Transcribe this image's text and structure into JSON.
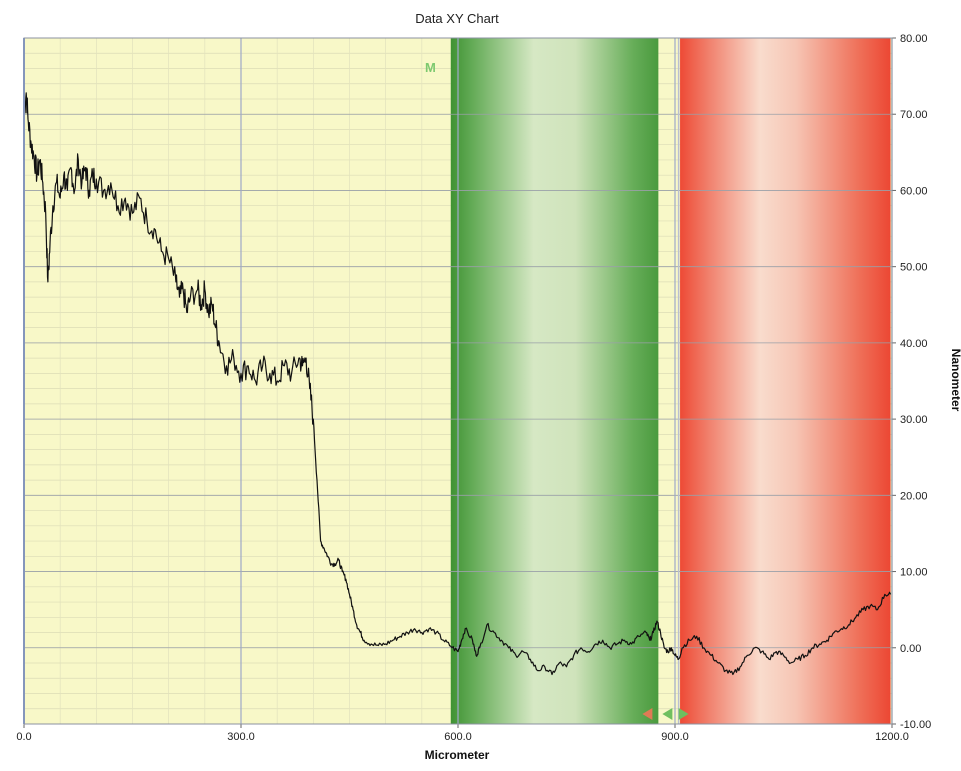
{
  "chart_data": {
    "type": "line",
    "title": "Data XY Chart",
    "xlabel": "Micrometer",
    "ylabel": "Nanometer",
    "xlim": [
      0,
      1200
    ],
    "ylim": [
      -10,
      80
    ],
    "x_ticks": [
      0,
      300,
      600,
      900,
      1200
    ],
    "x_tick_labels": [
      "0.0",
      "300.0",
      "600.0",
      "900.0",
      "1200.0"
    ],
    "y_ticks": [
      -10,
      0,
      10,
      20,
      30,
      40,
      50,
      60,
      70,
      80
    ],
    "y_tick_labels": [
      "-10.00",
      "0.00",
      "10.00",
      "20.00",
      "30.00",
      "40.00",
      "50.00",
      "60.00",
      "70.00",
      "80.00"
    ],
    "grid": true,
    "y_axis_side": "right",
    "colors": {
      "plot_background": "#f8f8c8",
      "line": "#111111",
      "green_region": "#4a9a3e",
      "red_region": "#ee4a35",
      "marker_label": "#7dc96f",
      "grid_major": "#9aa0a8",
      "grid_minor": "#d8d8b0",
      "axis": "#8fa6d9"
    },
    "regions": [
      {
        "kind": "green",
        "x_start": 590,
        "x_end": 877
      },
      {
        "kind": "red",
        "x_start": 907,
        "x_end": 1198
      }
    ],
    "marker": {
      "label": "M",
      "x": 600
    },
    "cursor_line_x": 905,
    "series": [
      {
        "points": [
          [
            0,
            70
          ],
          [
            3,
            72.8
          ],
          [
            6,
            69
          ],
          [
            10,
            66
          ],
          [
            14,
            64.5
          ],
          [
            18,
            62
          ],
          [
            22,
            64
          ],
          [
            26,
            61
          ],
          [
            30,
            57
          ],
          [
            33,
            48
          ],
          [
            36,
            53
          ],
          [
            40,
            58
          ],
          [
            45,
            61
          ],
          [
            50,
            59
          ],
          [
            55,
            62
          ],
          [
            60,
            60
          ],
          [
            65,
            63
          ],
          [
            70,
            60
          ],
          [
            75,
            64
          ],
          [
            80,
            61
          ],
          [
            85,
            63
          ],
          [
            90,
            60
          ],
          [
            95,
            62
          ],
          [
            100,
            61.5
          ],
          [
            110,
            60
          ],
          [
            120,
            61
          ],
          [
            130,
            58
          ],
          [
            140,
            59
          ],
          [
            150,
            57
          ],
          [
            160,
            59
          ],
          [
            170,
            56
          ],
          [
            180,
            55
          ],
          [
            190,
            52
          ],
          [
            200,
            51
          ],
          [
            210,
            48
          ],
          [
            215,
            46
          ],
          [
            220,
            47
          ],
          [
            225,
            44
          ],
          [
            230,
            46
          ],
          [
            240,
            47
          ],
          [
            245,
            45
          ],
          [
            250,
            47
          ],
          [
            255,
            44
          ],
          [
            260,
            45
          ],
          [
            265,
            42
          ],
          [
            270,
            40
          ],
          [
            280,
            37
          ],
          [
            290,
            38
          ],
          [
            300,
            36
          ],
          [
            310,
            37
          ],
          [
            320,
            35
          ],
          [
            330,
            37
          ],
          [
            340,
            36
          ],
          [
            350,
            35
          ],
          [
            360,
            37
          ],
          [
            370,
            36
          ],
          [
            380,
            38
          ],
          [
            385,
            37
          ],
          [
            390,
            38
          ],
          [
            395,
            34
          ],
          [
            400,
            30
          ],
          [
            405,
            22
          ],
          [
            410,
            14
          ],
          [
            415,
            13
          ],
          [
            420,
            12
          ],
          [
            425,
            11
          ],
          [
            430,
            11
          ],
          [
            435,
            11.5
          ],
          [
            440,
            10
          ],
          [
            445,
            9
          ],
          [
            450,
            7
          ],
          [
            455,
            5
          ],
          [
            460,
            3
          ],
          [
            465,
            2
          ],
          [
            470,
            1
          ],
          [
            480,
            0.5
          ],
          [
            490,
            0.3
          ],
          [
            500,
            0.5
          ],
          [
            510,
            1
          ],
          [
            520,
            1.5
          ],
          [
            530,
            2
          ],
          [
            540,
            2.5
          ],
          [
            550,
            2
          ],
          [
            560,
            2.5
          ],
          [
            570,
            2
          ],
          [
            580,
            1
          ],
          [
            590,
            0.2
          ],
          [
            600,
            -0.5
          ],
          [
            605,
            1
          ],
          [
            610,
            2.5
          ],
          [
            620,
            1
          ],
          [
            625,
            -1
          ],
          [
            630,
            0
          ],
          [
            640,
            3
          ],
          [
            650,
            2
          ],
          [
            660,
            1
          ],
          [
            670,
            0
          ],
          [
            680,
            -1
          ],
          [
            690,
            -0.5
          ],
          [
            700,
            -1.5
          ],
          [
            710,
            -3
          ],
          [
            720,
            -2.5
          ],
          [
            730,
            -3.5
          ],
          [
            740,
            -2
          ],
          [
            750,
            -2.5
          ],
          [
            760,
            -1
          ],
          [
            770,
            0
          ],
          [
            780,
            -0.5
          ],
          [
            790,
            0.5
          ],
          [
            800,
            1
          ],
          [
            810,
            0
          ],
          [
            820,
            0.5
          ],
          [
            830,
            1
          ],
          [
            840,
            0.5
          ],
          [
            850,
            1.5
          ],
          [
            860,
            2
          ],
          [
            865,
            1
          ],
          [
            870,
            2
          ],
          [
            875,
            3.5
          ],
          [
            880,
            2
          ],
          [
            885,
            0
          ],
          [
            890,
            -0.5
          ],
          [
            895,
            0
          ],
          [
            900,
            -1
          ],
          [
            905,
            -1.5
          ],
          [
            910,
            0
          ],
          [
            920,
            1
          ],
          [
            930,
            1.5
          ],
          [
            940,
            0
          ],
          [
            950,
            -1
          ],
          [
            960,
            -2
          ],
          [
            970,
            -3
          ],
          [
            980,
            -3.5
          ],
          [
            990,
            -2.5
          ],
          [
            1000,
            -1
          ],
          [
            1010,
            0
          ],
          [
            1020,
            -0.5
          ],
          [
            1030,
            -1.5
          ],
          [
            1040,
            -0.5
          ],
          [
            1050,
            -1
          ],
          [
            1060,
            -2
          ],
          [
            1070,
            -1.5
          ],
          [
            1080,
            -1
          ],
          [
            1090,
            0
          ],
          [
            1100,
            0.5
          ],
          [
            1110,
            1
          ],
          [
            1120,
            2
          ],
          [
            1130,
            2.5
          ],
          [
            1140,
            3
          ],
          [
            1150,
            4
          ],
          [
            1160,
            5
          ],
          [
            1170,
            5.5
          ],
          [
            1180,
            5
          ],
          [
            1190,
            7
          ],
          [
            1198,
            7
          ]
        ]
      }
    ]
  }
}
